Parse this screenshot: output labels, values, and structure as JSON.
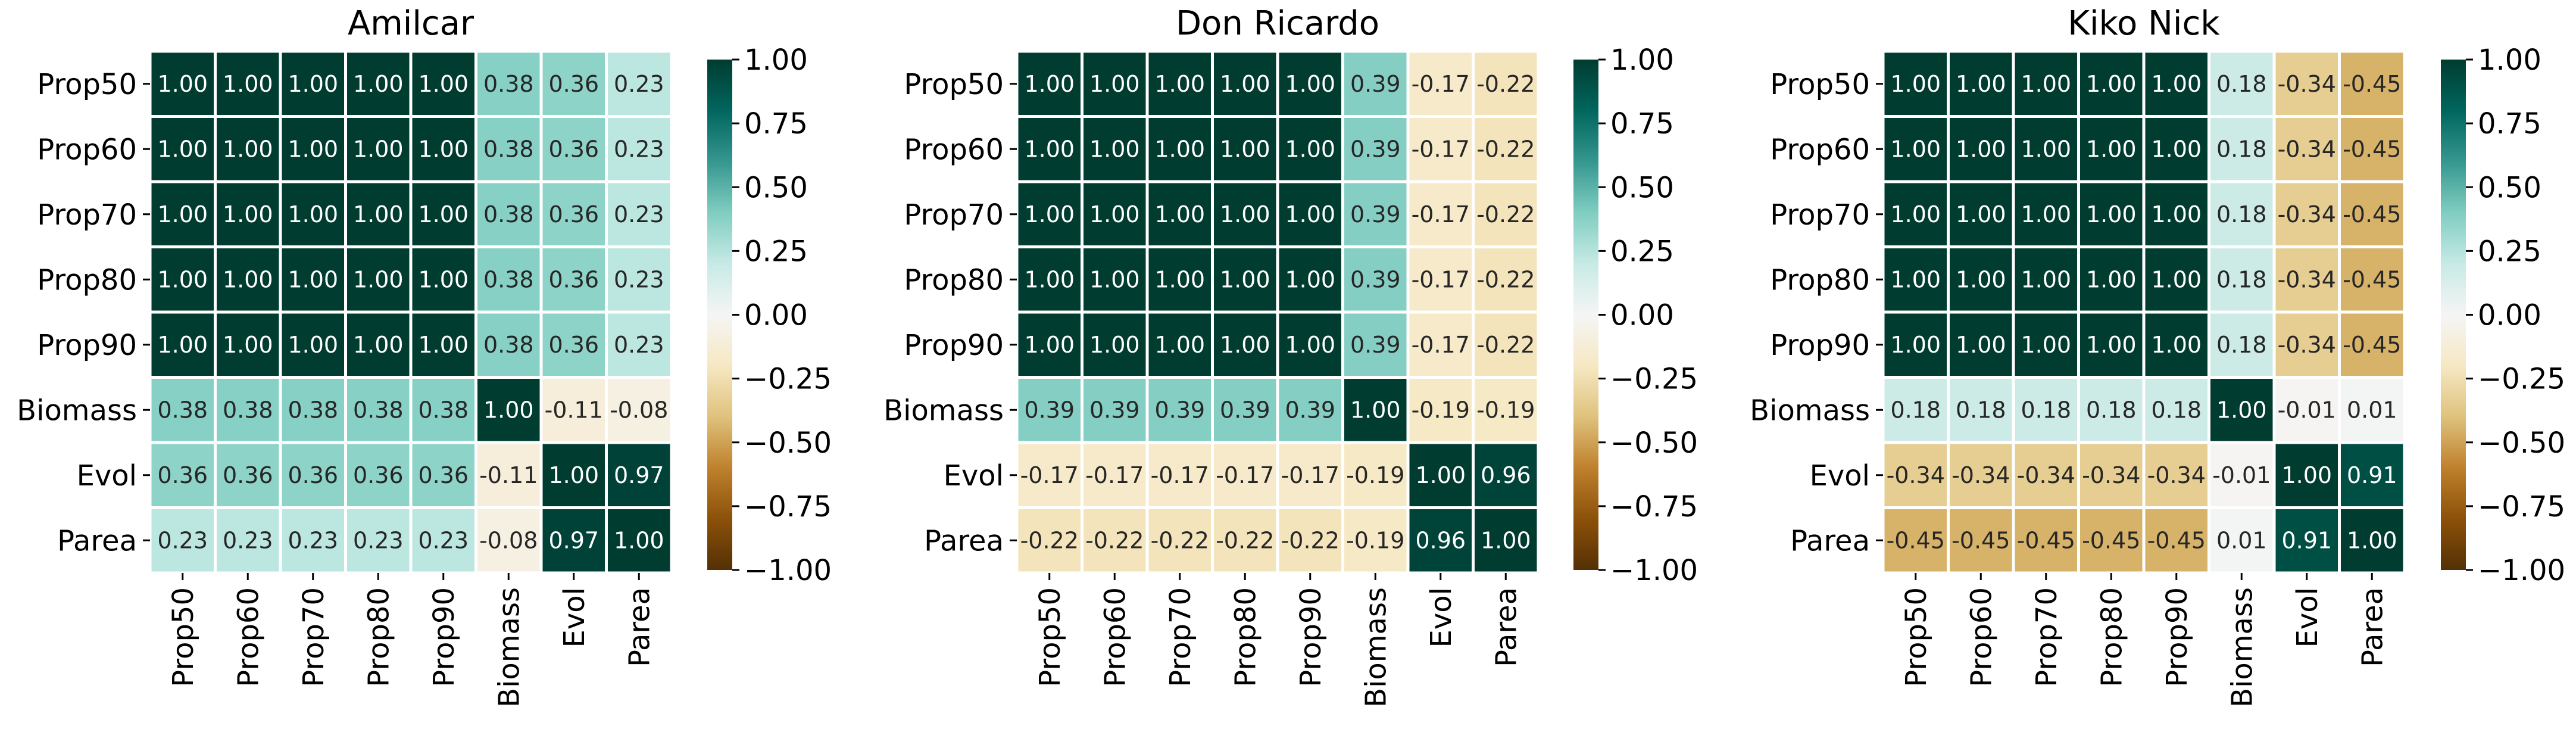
{
  "chart_data": [
    {
      "type": "heatmap",
      "title": "Amilcar",
      "labels": [
        "Prop50",
        "Prop60",
        "Prop70",
        "Prop80",
        "Prop90",
        "Biomass",
        "Evol",
        "Parea"
      ],
      "matrix": [
        [
          1.0,
          1.0,
          1.0,
          1.0,
          1.0,
          0.38,
          0.36,
          0.23
        ],
        [
          1.0,
          1.0,
          1.0,
          1.0,
          1.0,
          0.38,
          0.36,
          0.23
        ],
        [
          1.0,
          1.0,
          1.0,
          1.0,
          1.0,
          0.38,
          0.36,
          0.23
        ],
        [
          1.0,
          1.0,
          1.0,
          1.0,
          1.0,
          0.38,
          0.36,
          0.23
        ],
        [
          1.0,
          1.0,
          1.0,
          1.0,
          1.0,
          0.38,
          0.36,
          0.23
        ],
        [
          0.38,
          0.38,
          0.38,
          0.38,
          0.38,
          1.0,
          -0.11,
          -0.08
        ],
        [
          0.36,
          0.36,
          0.36,
          0.36,
          0.36,
          -0.11,
          1.0,
          0.97
        ],
        [
          0.23,
          0.23,
          0.23,
          0.23,
          0.23,
          -0.08,
          0.97,
          1.0
        ]
      ],
      "colorbar": {
        "range": [
          -1.0,
          1.0
        ],
        "ticks": [
          "1.00",
          "0.75",
          "0.50",
          "0.25",
          "0.00",
          "−0.25",
          "−0.50",
          "−0.75",
          "−1.00"
        ]
      }
    },
    {
      "type": "heatmap",
      "title": "Don Ricardo",
      "labels": [
        "Prop50",
        "Prop60",
        "Prop70",
        "Prop80",
        "Prop90",
        "Biomass",
        "Evol",
        "Parea"
      ],
      "matrix": [
        [
          1.0,
          1.0,
          1.0,
          1.0,
          1.0,
          0.39,
          -0.17,
          -0.22
        ],
        [
          1.0,
          1.0,
          1.0,
          1.0,
          1.0,
          0.39,
          -0.17,
          -0.22
        ],
        [
          1.0,
          1.0,
          1.0,
          1.0,
          1.0,
          0.39,
          -0.17,
          -0.22
        ],
        [
          1.0,
          1.0,
          1.0,
          1.0,
          1.0,
          0.39,
          -0.17,
          -0.22
        ],
        [
          1.0,
          1.0,
          1.0,
          1.0,
          1.0,
          0.39,
          -0.17,
          -0.22
        ],
        [
          0.39,
          0.39,
          0.39,
          0.39,
          0.39,
          1.0,
          -0.19,
          -0.19
        ],
        [
          -0.17,
          -0.17,
          -0.17,
          -0.17,
          -0.17,
          -0.19,
          1.0,
          0.96
        ],
        [
          -0.22,
          -0.22,
          -0.22,
          -0.22,
          -0.22,
          -0.19,
          0.96,
          1.0
        ]
      ],
      "colorbar": {
        "range": [
          -1.0,
          1.0
        ],
        "ticks": [
          "1.00",
          "0.75",
          "0.50",
          "0.25",
          "0.00",
          "−0.25",
          "−0.50",
          "−0.75",
          "−1.00"
        ]
      }
    },
    {
      "type": "heatmap",
      "title": "Kiko Nick",
      "labels": [
        "Prop50",
        "Prop60",
        "Prop70",
        "Prop80",
        "Prop90",
        "Biomass",
        "Evol",
        "Parea"
      ],
      "matrix": [
        [
          1.0,
          1.0,
          1.0,
          1.0,
          1.0,
          0.18,
          -0.34,
          -0.45
        ],
        [
          1.0,
          1.0,
          1.0,
          1.0,
          1.0,
          0.18,
          -0.34,
          -0.45
        ],
        [
          1.0,
          1.0,
          1.0,
          1.0,
          1.0,
          0.18,
          -0.34,
          -0.45
        ],
        [
          1.0,
          1.0,
          1.0,
          1.0,
          1.0,
          0.18,
          -0.34,
          -0.45
        ],
        [
          1.0,
          1.0,
          1.0,
          1.0,
          1.0,
          0.18,
          -0.34,
          -0.45
        ],
        [
          0.18,
          0.18,
          0.18,
          0.18,
          0.18,
          1.0,
          -0.01,
          0.01
        ],
        [
          -0.34,
          -0.34,
          -0.34,
          -0.34,
          -0.34,
          -0.01,
          1.0,
          0.91
        ],
        [
          -0.45,
          -0.45,
          -0.45,
          -0.45,
          -0.45,
          0.01,
          0.91,
          1.0
        ]
      ],
      "colorbar": {
        "range": [
          -1.0,
          1.0
        ],
        "ticks": [
          "1.00",
          "0.75",
          "0.50",
          "0.25",
          "0.00",
          "−0.25",
          "−0.50",
          "−0.75",
          "−1.00"
        ]
      }
    }
  ],
  "colormap": {
    "name": "BrBG",
    "stops": [
      "#543005",
      "#8c510a",
      "#bf812d",
      "#dfc27d",
      "#f6e8c3",
      "#f5f5f5",
      "#c7eae5",
      "#80cdc1",
      "#35978f",
      "#01665e",
      "#003c30"
    ]
  }
}
